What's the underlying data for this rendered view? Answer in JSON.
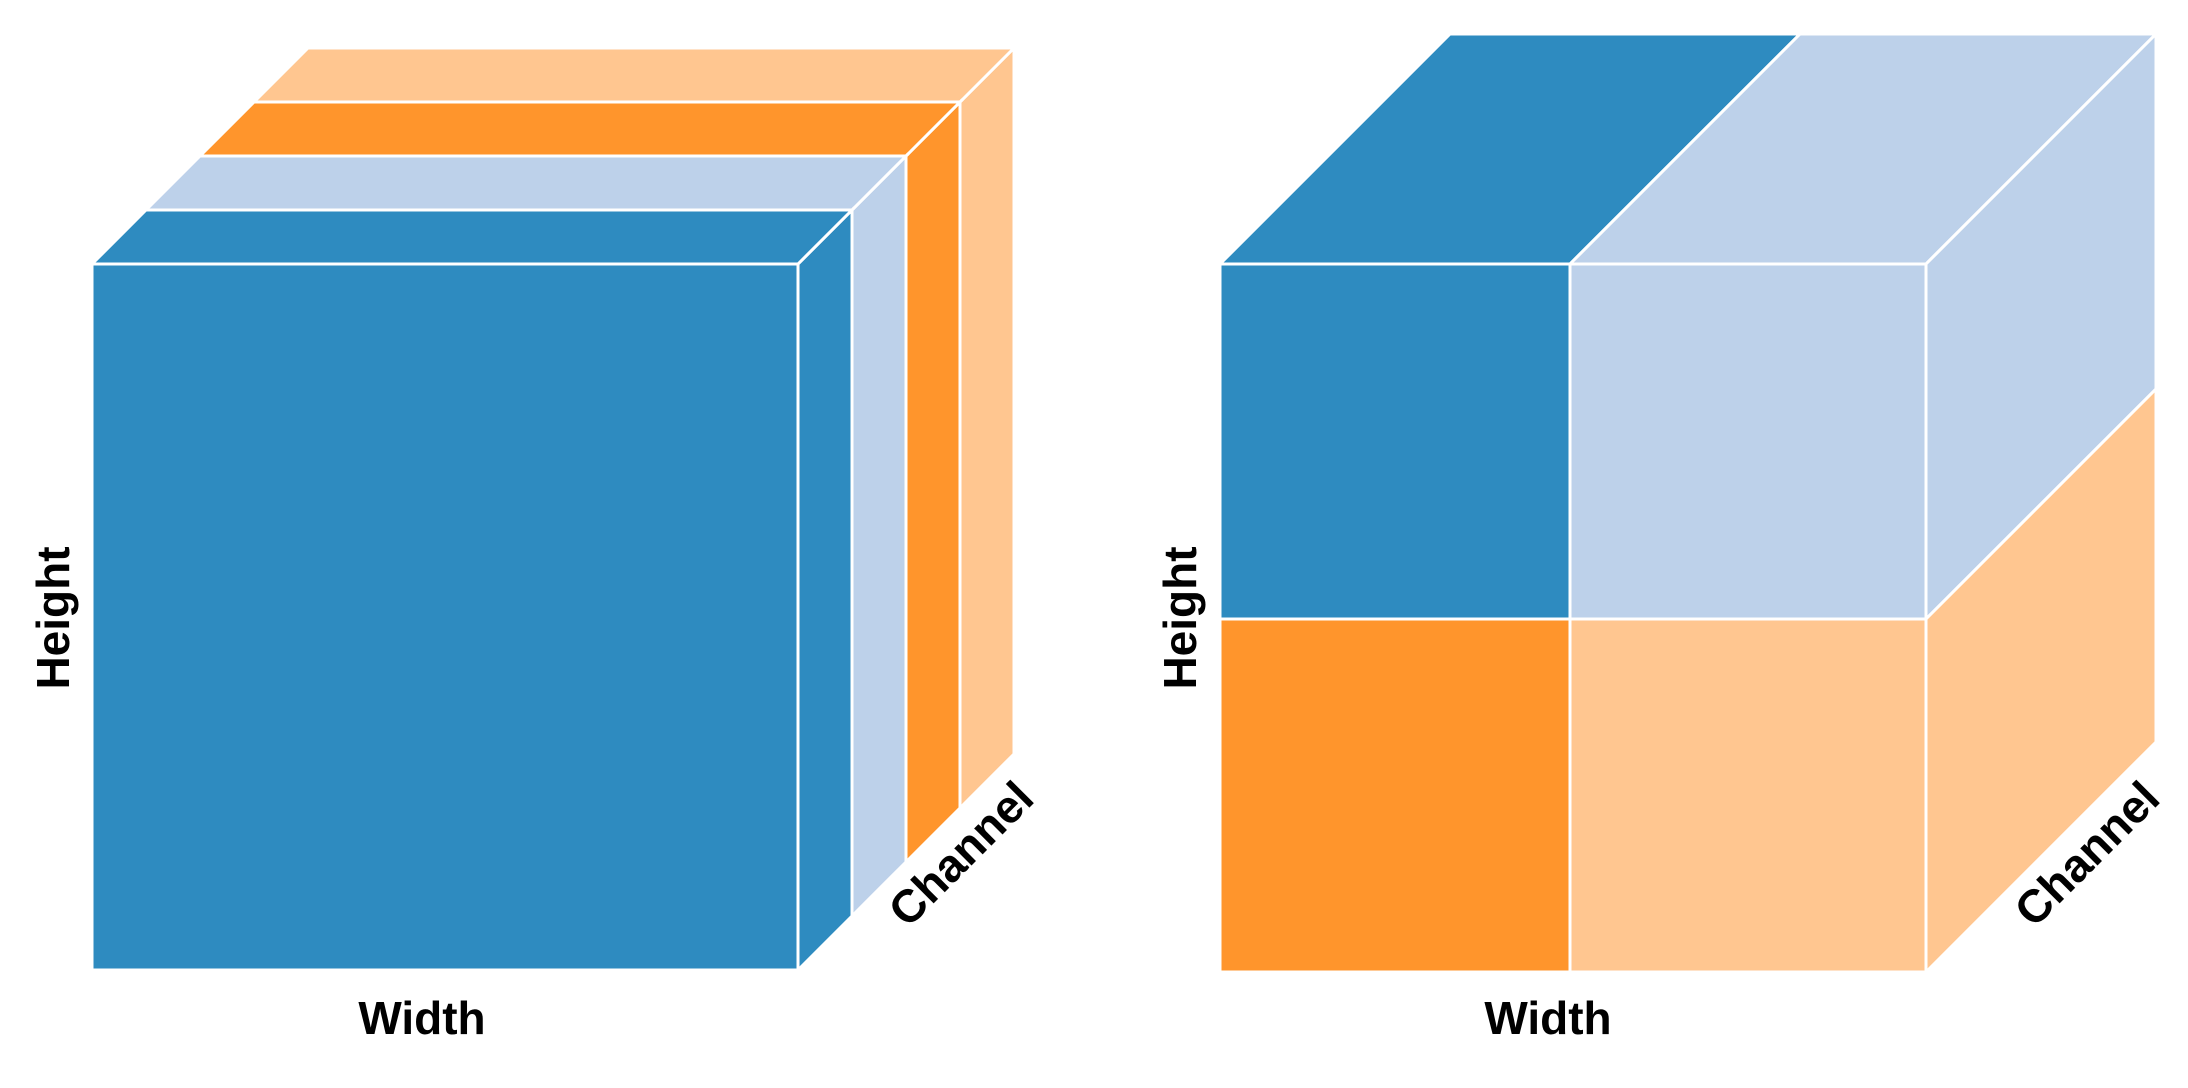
{
  "colors": {
    "dark_blue": "#2E8BC0",
    "light_blue": "#BDD1EA",
    "dark_orange": "#FF952C",
    "light_orange": "#FFC690",
    "edge": "#FFFFFF",
    "label": "#000000"
  },
  "left_cube": {
    "height_label": "Height",
    "width_label": "Width",
    "channel_label": "Channel",
    "channel_slices": [
      "dark_blue",
      "light_blue",
      "dark_orange",
      "light_orange"
    ]
  },
  "right_cube": {
    "height_label": "Height",
    "width_label": "Width",
    "channel_label": "Channel",
    "quadrants": {
      "top_left": "dark_blue",
      "top_right": "light_blue",
      "bottom_left": "dark_orange",
      "bottom_right": "light_orange"
    }
  }
}
